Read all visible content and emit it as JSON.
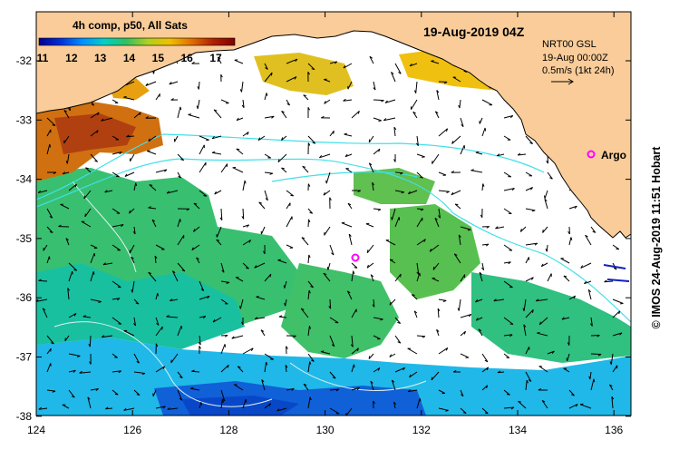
{
  "map": {
    "product_label": "4h comp, p50, All Sats",
    "date_title": "19-Aug-2019 04Z",
    "info_lines": [
      "NRT00 GSL",
      "19-Aug 00:00Z",
      "0.5m/s (1kt 24h)"
    ],
    "float_label": "Argo",
    "credit": "© IMOS 24-Aug-2019 11:51 Hobart",
    "colorbar": {
      "ticks": [
        "11",
        "12",
        "13",
        "14",
        "15",
        "16",
        "17"
      ],
      "colors": [
        "#00008c",
        "#0030d8",
        "#0090ff",
        "#00d0c8",
        "#30c060",
        "#b0d020",
        "#f0c000",
        "#e07000",
        "#b02000",
        "#800000"
      ]
    },
    "lat_ticks": [
      "-32",
      "-33",
      "-34",
      "-35",
      "-36",
      "-37",
      "-38"
    ],
    "lon_ticks": [
      "124",
      "126",
      "128",
      "130",
      "132",
      "134",
      "136"
    ],
    "colors": {
      "land": "#f9cc99",
      "track": "#40e0e8",
      "contour": "#e0f0f0",
      "argo": "#ff00ff",
      "arrow_blue": "#1020c0"
    }
  }
}
